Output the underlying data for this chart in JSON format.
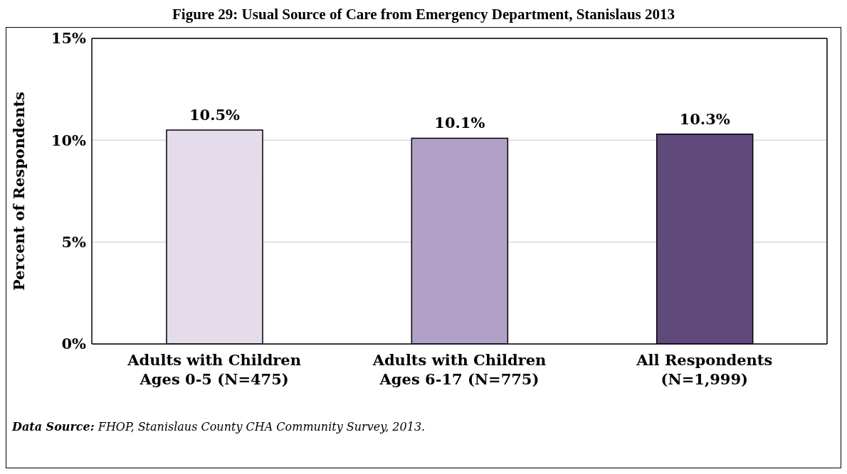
{
  "chart_data": {
    "type": "bar",
    "title": "Figure 29: Usual Source of Care from Emergency Department, Stanislaus 2013",
    "ylabel": "Percent  of Respondents",
    "categories": [
      "Adults with Children Ages 0-5 (N=475)",
      "Adults with Children Ages 6-17 (N=775)",
      "All Respondents (N=1,999)"
    ],
    "values": [
      10.5,
      10.1,
      10.3
    ],
    "colors": [
      "#e4dcea",
      "#b2a1c7",
      "#604a7b"
    ],
    "value_labels": [
      "10.5%",
      "10.1%",
      "10.3%"
    ],
    "ylim": [
      0,
      15
    ],
    "yticks": [
      {
        "value": 0,
        "label": "0%"
      },
      {
        "value": 5,
        "label": "5%"
      },
      {
        "value": 10,
        "label": "10%"
      },
      {
        "value": 15,
        "label": "15%"
      }
    ],
    "grid": "y",
    "annotations": [
      "Data Source: FHOP, Stanislaus County CHA Community Survey, 2013."
    ]
  }
}
